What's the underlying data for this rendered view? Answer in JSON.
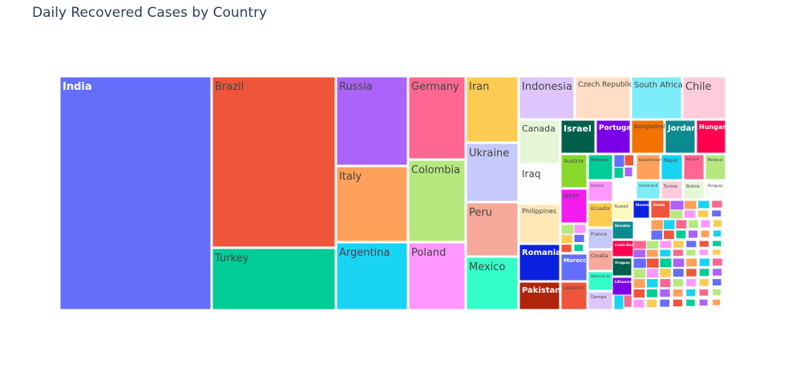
{
  "chart_data": {
    "type": "treemap",
    "title": "Daily Recovered Cases by Country",
    "labeled_tiles": [
      {
        "name": "India",
        "color": "#636efa",
        "text": "#ffffff"
      },
      {
        "name": "Brazil",
        "color": "#ef553b",
        "text": "#444444"
      },
      {
        "name": "Turkey",
        "color": "#00cc96",
        "text": "#444444"
      },
      {
        "name": "Russia",
        "color": "#ab63fa",
        "text": "#444444"
      },
      {
        "name": "Italy",
        "color": "#ffa15a",
        "text": "#444444"
      },
      {
        "name": "Argentina",
        "color": "#19d3f3",
        "text": "#444444"
      },
      {
        "name": "Germany",
        "color": "#ff6692",
        "text": "#444444"
      },
      {
        "name": "Colombia",
        "color": "#b6e880",
        "text": "#444444"
      },
      {
        "name": "Poland",
        "color": "#ff97ff",
        "text": "#444444"
      },
      {
        "name": "Iran",
        "color": "#fecb52",
        "text": "#444444"
      },
      {
        "name": "Ukraine",
        "color": "#c6c9fb",
        "text": "#444444"
      },
      {
        "name": "Peru",
        "color": "#f6a99b",
        "text": "#444444"
      },
      {
        "name": "Mexico",
        "color": "#34ffc8",
        "text": "#444444"
      },
      {
        "name": "Indonesia",
        "color": "#dec6fc",
        "text": "#444444"
      },
      {
        "name": "Czech Republic",
        "color": "#ffdec5",
        "text": "#444444"
      },
      {
        "name": "South Africa",
        "color": "#7dedf9",
        "text": "#444444"
      },
      {
        "name": "Chile",
        "color": "#ffccdd",
        "text": "#444444"
      },
      {
        "name": "Canada",
        "color": "#e6f7d8",
        "text": "#444444"
      },
      {
        "name": "Israel",
        "color": "#005f4b",
        "text": "#ffffff"
      },
      {
        "name": "Portugal",
        "color": "#7a00e6",
        "text": "#ffffff"
      },
      {
        "name": "Bangladesh",
        "color": "#f27200",
        "text": "#444444"
      },
      {
        "name": "Jordan",
        "color": "#0b8a8f",
        "text": "#ffffff"
      },
      {
        "name": "Hungary",
        "color": "#ff0050",
        "text": "#ffffff"
      },
      {
        "name": "Iraq",
        "color": "#fdfdfd",
        "text": "#444444"
      },
      {
        "name": "Austria",
        "color": "#89d92d",
        "text": "#444444"
      },
      {
        "name": "Malaysia",
        "color": "#00cc96",
        "text": "#444444"
      },
      {
        "name": "Kazakhstan",
        "color": "#ffa15a",
        "text": "#444444"
      },
      {
        "name": "Nepal",
        "color": "#19d3f3",
        "text": "#444444"
      },
      {
        "name": "Belgium",
        "color": "#ff6692",
        "text": "#444444"
      },
      {
        "name": "Belarus",
        "color": "#b6e880",
        "text": "#444444"
      },
      {
        "name": "Japan",
        "color": "#f51bef",
        "text": "#444444"
      },
      {
        "name": "Panama",
        "color": "#ff97ff",
        "text": "#444444"
      },
      {
        "name": "Switzerland",
        "color": "#7dedf9",
        "text": "#444444"
      },
      {
        "name": "Tunisia",
        "color": "#ffccdd",
        "text": "#444444"
      },
      {
        "name": "Bolivia",
        "color": "#e6f7d8",
        "text": "#444444"
      },
      {
        "name": "Paraguay",
        "color": "#fafafa",
        "text": "#444444"
      },
      {
        "name": "Philippines",
        "color": "#ffe8b5",
        "text": "#444444"
      },
      {
        "name": "Ecuador",
        "color": "#fecb52",
        "text": "#444444"
      },
      {
        "name": "Kuwait",
        "color": "#fffac0",
        "text": "#444444"
      },
      {
        "name": "Slovakia",
        "color": "#0b8a8f",
        "text": "#ffffff"
      },
      {
        "name": "Costa Rica",
        "color": "#ff0050",
        "text": "#ffffff"
      },
      {
        "name": "Romania",
        "color": "#0b21e0",
        "text": "#ffffff"
      },
      {
        "name": "Morocco",
        "color": "#636efa",
        "text": "#ffffff"
      },
      {
        "name": "France",
        "color": "#c6c9fb",
        "text": "#444444"
      },
      {
        "name": "Croatia",
        "color": "#f6a99b",
        "text": "#444444"
      },
      {
        "name": "Netherlands",
        "color": "#34ffc8",
        "text": "#444444"
      },
      {
        "name": "Georgia",
        "color": "#dec6fc",
        "text": "#444444"
      },
      {
        "name": "Slovenia",
        "color": "#0b21e0",
        "text": "#ffffff"
      },
      {
        "name": "Serbia",
        "color": "#ef553b",
        "text": "#ffffff"
      },
      {
        "name": "Uruguay",
        "color": "#005f4b",
        "text": "#ffffff"
      },
      {
        "name": "Lithuania",
        "color": "#7a00e6",
        "text": "#ffffff"
      },
      {
        "name": "Pakistan",
        "color": "#b0240b",
        "text": "#ffffff"
      },
      {
        "name": "Lebanon",
        "color": "#ef553b",
        "text": "#444444"
      }
    ],
    "palette": [
      "#636efa",
      "#ef553b",
      "#00cc96",
      "#ab63fa",
      "#ffa15a",
      "#19d3f3",
      "#ff6692",
      "#b6e880",
      "#ff97ff",
      "#fecb52"
    ]
  }
}
